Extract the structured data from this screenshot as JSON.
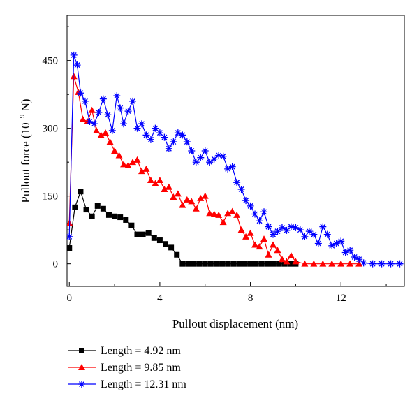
{
  "chart_data": {
    "type": "line",
    "xlabel": "Pullout displacement (nm)",
    "ylabel_main": "Pullout force (10",
    "ylabel_exp": "−9",
    "ylabel_unit": " N)",
    "xlim": [
      -0.1,
      14.8
    ],
    "ylim": [
      -50,
      550
    ],
    "xticks": [
      0,
      4,
      8,
      12
    ],
    "xtick_labels": [
      "0",
      "4",
      "8",
      "12"
    ],
    "yticks": [
      0,
      150,
      300,
      450
    ],
    "ytick_labels": [
      "0",
      "150",
      "300",
      "450"
    ],
    "legend_position": "bottom-left",
    "series": [
      {
        "name": "Length = 4.92 nm",
        "color": "#000000",
        "marker": "square",
        "x": [
          0,
          0.25,
          0.5,
          0.75,
          1.0,
          1.25,
          1.5,
          1.75,
          2.0,
          2.25,
          2.5,
          2.75,
          3.0,
          3.25,
          3.5,
          3.75,
          4.0,
          4.25,
          4.5,
          4.75,
          5.0,
          5.25,
          5.5,
          5.75,
          6.0,
          6.25,
          6.5,
          6.75,
          7.0,
          7.25,
          7.5,
          7.75,
          8.0,
          8.25,
          8.5,
          8.75,
          9.0,
          9.25,
          9.5,
          9.75,
          10.0
        ],
        "y": [
          35,
          125,
          160,
          120,
          105,
          128,
          122,
          108,
          105,
          103,
          97,
          85,
          65,
          65,
          68,
          57,
          52,
          44,
          36,
          20,
          0,
          0,
          0,
          0,
          0,
          0,
          0,
          0,
          0,
          0,
          0,
          0,
          0,
          0,
          0,
          0,
          0,
          0,
          0,
          0,
          0
        ]
      },
      {
        "name": "Length = 9.85 nm",
        "color": "#ff0000",
        "marker": "triangle",
        "x": [
          0,
          0.2,
          0.4,
          0.6,
          0.8,
          1.0,
          1.2,
          1.4,
          1.6,
          1.8,
          2.0,
          2.2,
          2.4,
          2.6,
          2.8,
          3.0,
          3.2,
          3.4,
          3.6,
          3.8,
          4.0,
          4.2,
          4.4,
          4.6,
          4.8,
          5.0,
          5.2,
          5.4,
          5.6,
          5.8,
          6.0,
          6.2,
          6.4,
          6.6,
          6.8,
          7.0,
          7.2,
          7.4,
          7.6,
          7.8,
          8.0,
          8.2,
          8.4,
          8.6,
          8.8,
          9.0,
          9.2,
          9.4,
          9.6,
          9.8,
          10.0,
          10.4,
          10.8,
          11.2,
          11.6,
          12.0,
          12.4,
          12.8
        ],
        "y": [
          90,
          415,
          380,
          320,
          315,
          340,
          295,
          285,
          290,
          270,
          250,
          240,
          220,
          218,
          225,
          230,
          205,
          210,
          185,
          178,
          185,
          165,
          170,
          148,
          155,
          130,
          142,
          138,
          122,
          145,
          150,
          112,
          110,
          108,
          92,
          112,
          116,
          108,
          75,
          60,
          68,
          42,
          38,
          55,
          20,
          42,
          30,
          10,
          5,
          18,
          5,
          0,
          0,
          0,
          0,
          0,
          0,
          0
        ]
      },
      {
        "name": "Length = 12.31 nm",
        "color": "#0000ff",
        "marker": "asterisk",
        "x": [
          0,
          0.2,
          0.35,
          0.5,
          0.7,
          0.9,
          1.1,
          1.3,
          1.5,
          1.7,
          1.9,
          2.1,
          2.25,
          2.4,
          2.6,
          2.8,
          3.0,
          3.2,
          3.4,
          3.6,
          3.8,
          4.0,
          4.2,
          4.4,
          4.6,
          4.8,
          5.0,
          5.2,
          5.4,
          5.6,
          5.8,
          6.0,
          6.2,
          6.4,
          6.6,
          6.8,
          7.0,
          7.2,
          7.4,
          7.6,
          7.8,
          8.0,
          8.2,
          8.4,
          8.6,
          8.8,
          9.0,
          9.2,
          9.4,
          9.6,
          9.8,
          10.0,
          10.2,
          10.4,
          10.6,
          10.8,
          11.0,
          11.2,
          11.4,
          11.6,
          11.8,
          12.0,
          12.2,
          12.4,
          12.6,
          12.8,
          13.0,
          13.4,
          13.8,
          14.2,
          14.6
        ],
        "y": [
          60,
          462,
          440,
          378,
          360,
          315,
          310,
          335,
          365,
          330,
          295,
          372,
          345,
          310,
          338,
          360,
          300,
          310,
          285,
          275,
          300,
          290,
          280,
          255,
          270,
          290,
          285,
          270,
          250,
          225,
          235,
          250,
          225,
          232,
          240,
          238,
          210,
          215,
          180,
          165,
          140,
          128,
          110,
          95,
          115,
          82,
          65,
          72,
          80,
          74,
          82,
          80,
          75,
          60,
          72,
          65,
          45,
          82,
          65,
          40,
          45,
          50,
          25,
          30,
          15,
          10,
          2,
          0,
          0,
          0,
          0
        ]
      }
    ]
  }
}
